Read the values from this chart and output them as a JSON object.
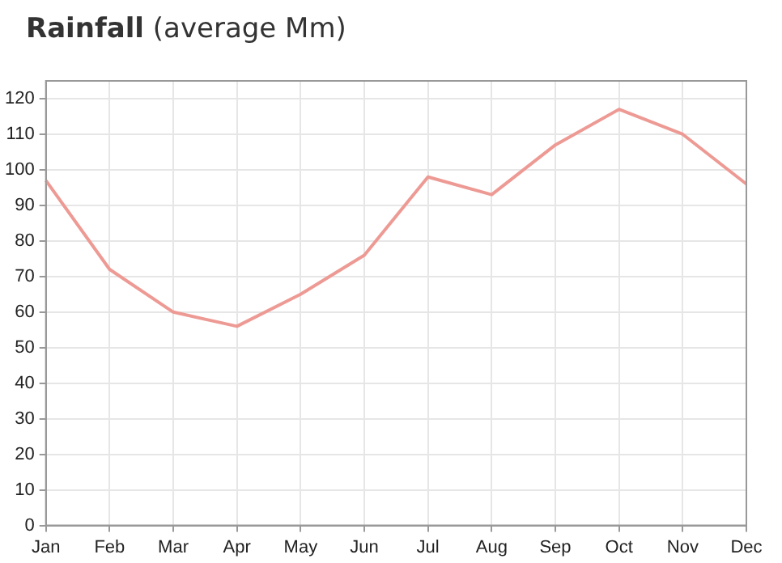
{
  "chart_data": {
    "type": "line",
    "title": "Rainfall (average Mm)",
    "categories": [
      "Jan",
      "Feb",
      "Mar",
      "Apr",
      "May",
      "Jun",
      "Jul",
      "Aug",
      "Sep",
      "Oct",
      "Nov",
      "Dec"
    ],
    "series": [
      {
        "color": "#ee9a94",
        "values": [
          97,
          72,
          60,
          56,
          65,
          76,
          98,
          93,
          107,
          117,
          110,
          96
        ]
      }
    ],
    "ylim": [
      0,
      125
    ],
    "yticks": [
      0,
      10,
      20,
      30,
      40,
      50,
      60,
      70,
      80,
      90,
      100,
      110,
      120
    ],
    "grid": true,
    "legend": false,
    "marker": "none",
    "line_style": "solid"
  }
}
